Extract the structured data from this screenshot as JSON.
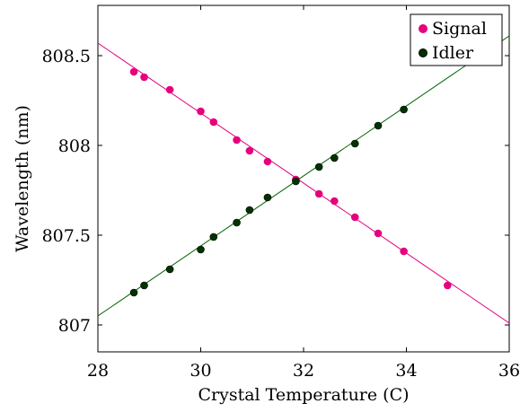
{
  "chart_data": {
    "type": "scatter",
    "title": "",
    "xlabel": "Crystal Temperature (C)",
    "ylabel": "Wavelength (nm)",
    "xlim": [
      28,
      36
    ],
    "ylim": [
      806.85,
      808.78
    ],
    "xticks": [
      "28",
      "30",
      "32",
      "34",
      "36"
    ],
    "yticks": [
      "807",
      "807.5",
      "808",
      "808.5"
    ],
    "xtick_values": [
      28,
      30,
      32,
      34,
      36
    ],
    "ytick_values": [
      807,
      807.5,
      808,
      808.5
    ],
    "grid": false,
    "legend_position": "top-right",
    "series": [
      {
        "name": "Signal",
        "color": "#e6007e",
        "fit_line": {
          "x": [
            28,
            36
          ],
          "y": [
            808.57,
            807.01
          ]
        },
        "x": [
          28.7,
          28.9,
          29.4,
          30.0,
          30.25,
          30.7,
          30.95,
          31.3,
          31.85,
          32.3,
          32.6,
          33.0,
          33.45,
          33.95,
          34.8
        ],
        "y": [
          808.41,
          808.38,
          808.31,
          808.19,
          808.13,
          808.03,
          807.97,
          807.91,
          807.81,
          807.73,
          807.69,
          807.6,
          807.51,
          807.41,
          807.22
        ]
      },
      {
        "name": "Idler",
        "color": "#003300",
        "line_color": "#006400",
        "fit_line": {
          "x": [
            28,
            36
          ],
          "y": [
            807.05,
            808.61
          ]
        },
        "x": [
          28.7,
          28.9,
          29.4,
          30.0,
          30.25,
          30.7,
          30.95,
          31.3,
          31.85,
          32.3,
          32.6,
          33.0,
          33.45,
          33.95
        ],
        "y": [
          807.18,
          807.22,
          807.31,
          807.42,
          807.49,
          807.57,
          807.64,
          807.71,
          807.8,
          807.88,
          807.93,
          808.01,
          808.11,
          808.2
        ]
      }
    ]
  }
}
